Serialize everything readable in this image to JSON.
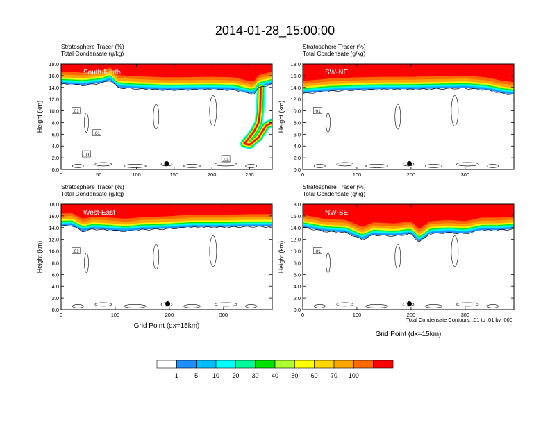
{
  "figure": {
    "title": "2014-01-28_15:00:00",
    "footnote": "Total Condensate Contours: .01 to .01 by .000"
  },
  "colorbar": {
    "labels": [
      "1",
      "5",
      "10",
      "20",
      "30",
      "40",
      "50",
      "60",
      "70",
      "100"
    ],
    "colors": [
      "#ffffff",
      "#1e90ff",
      "#00bfff",
      "#00ffff",
      "#00fa9a",
      "#00e400",
      "#adff2f",
      "#ffff00",
      "#ffd700",
      "#ffa500",
      "#ff6a00",
      "#ff0000"
    ]
  },
  "chart_data": [
    {
      "type": "heatmap",
      "name": "South-North",
      "title": "Stratosphere Tracer   (%)",
      "subtitle": "Total Condensate   (g/kg)",
      "xlabel": "",
      "ylabel": "Height (km)",
      "xlim": [
        0,
        280
      ],
      "ylim": [
        0,
        18
      ],
      "xticks": [
        0,
        50,
        100,
        150,
        200,
        250
      ],
      "yticks": [
        0,
        2,
        4,
        6,
        8,
        10,
        12,
        14,
        16,
        18
      ],
      "ytick_labels": [
        "0.0",
        "2.0",
        "4.0",
        "6.0",
        "8.0",
        "10.0",
        "12.0",
        "14.0",
        "16.0",
        "18.0"
      ],
      "tropopause_km": [
        [
          0,
          15.8
        ],
        [
          30,
          15.6
        ],
        [
          55,
          16.0
        ],
        [
          65,
          16.5
        ],
        [
          75,
          15.2
        ],
        [
          100,
          15.0
        ],
        [
          140,
          14.8
        ],
        [
          200,
          14.9
        ],
        [
          230,
          14.8
        ],
        [
          255,
          14.0
        ],
        [
          262,
          15.2
        ],
        [
          280,
          15.8
        ]
      ],
      "intrusion_km": [
        [
          265,
          14.0
        ],
        [
          264,
          10.0
        ],
        [
          262,
          8.0
        ],
        [
          256,
          6.5
        ],
        [
          248,
          5.2
        ],
        [
          243,
          4.4
        ],
        [
          250,
          4.2
        ],
        [
          262,
          5.5
        ],
        [
          272,
          7.5
        ],
        [
          280,
          8.0
        ]
      ],
      "contour_labels": [
        ".01",
        ".01",
        ".01",
        ".01"
      ],
      "marker": {
        "x": 140,
        "y": 1.0
      }
    },
    {
      "type": "heatmap",
      "name": "SW-NE",
      "title": "Stratosphere Tracer   (%)",
      "subtitle": "Total Condensate   (g/kg)",
      "xlabel": "",
      "ylabel": "Height (km)",
      "xlim": [
        0,
        390
      ],
      "ylim": [
        0,
        18
      ],
      "xticks": [
        0,
        100,
        200,
        300
      ],
      "yticks": [
        0,
        2,
        4,
        6,
        8,
        10,
        12,
        14,
        16,
        18
      ],
      "ytick_labels": [
        "0.0",
        "2.0",
        "4.0",
        "6.0",
        "8.0",
        "10.0",
        "12.0",
        "14.0",
        "16.0",
        "18.0"
      ],
      "tropopause_km": [
        [
          0,
          14.2
        ],
        [
          50,
          14.6
        ],
        [
          100,
          14.8
        ],
        [
          150,
          14.9
        ],
        [
          200,
          14.9
        ],
        [
          250,
          15.0
        ],
        [
          300,
          15.1
        ],
        [
          340,
          14.8
        ],
        [
          370,
          14.2
        ],
        [
          390,
          14.0
        ]
      ],
      "contour_labels": [
        ".01"
      ],
      "marker": {
        "x": 197,
        "y": 1.0
      }
    },
    {
      "type": "heatmap",
      "name": "West-East",
      "title": "Stratosphere Tracer   (%)",
      "subtitle": "Total Condensate   (g/kg)",
      "xlabel": "Grid Point (dx=15km)",
      "ylabel": "Height (km)",
      "xlim": [
        0,
        390
      ],
      "ylim": [
        0,
        18
      ],
      "xticks": [
        0,
        100,
        200,
        300
      ],
      "yticks": [
        0,
        2,
        4,
        6,
        8,
        10,
        12,
        14,
        16,
        18
      ],
      "ytick_labels": [
        "0.0",
        "2.0",
        "4.0",
        "6.0",
        "8.0",
        "10.0",
        "12.0",
        "14.0",
        "16.0",
        "18.0"
      ],
      "tropopause_km": [
        [
          0,
          15.5
        ],
        [
          20,
          15.6
        ],
        [
          40,
          14.6
        ],
        [
          60,
          15.0
        ],
        [
          90,
          14.8
        ],
        [
          120,
          14.6
        ],
        [
          150,
          14.9
        ],
        [
          190,
          15.0
        ],
        [
          240,
          15.3
        ],
        [
          300,
          15.3
        ],
        [
          350,
          15.4
        ],
        [
          390,
          15.4
        ]
      ],
      "contour_labels": [
        ".01"
      ],
      "marker": {
        "x": 197,
        "y": 1.0
      }
    },
    {
      "type": "heatmap",
      "name": "NW-SE",
      "title": "Stratosphere Tracer   (%)",
      "subtitle": "Total Condensate   (g/kg)",
      "xlabel": "Grid Point (dx=15km)",
      "ylabel": "Height (km)",
      "xlim": [
        0,
        390
      ],
      "ylim": [
        0,
        18
      ],
      "xticks": [
        0,
        100,
        200,
        300
      ],
      "yticks": [
        0,
        2,
        4,
        6,
        8,
        10,
        12,
        14,
        16,
        18
      ],
      "ytick_labels": [
        "0.0",
        "2.0",
        "4.0",
        "6.0",
        "8.0",
        "10.0",
        "12.0",
        "14.0",
        "16.0",
        "18.0"
      ],
      "tropopause_km": [
        [
          0,
          15.3
        ],
        [
          40,
          14.6
        ],
        [
          80,
          14.4
        ],
        [
          110,
          13.2
        ],
        [
          130,
          14.0
        ],
        [
          170,
          13.8
        ],
        [
          200,
          14.2
        ],
        [
          215,
          12.8
        ],
        [
          235,
          14.2
        ],
        [
          270,
          14.4
        ],
        [
          300,
          14.2
        ],
        [
          330,
          14.8
        ],
        [
          360,
          14.8
        ],
        [
          390,
          15.0
        ]
      ],
      "contour_labels": [
        ".01"
      ],
      "marker": {
        "x": 197,
        "y": 1.0
      }
    }
  ]
}
